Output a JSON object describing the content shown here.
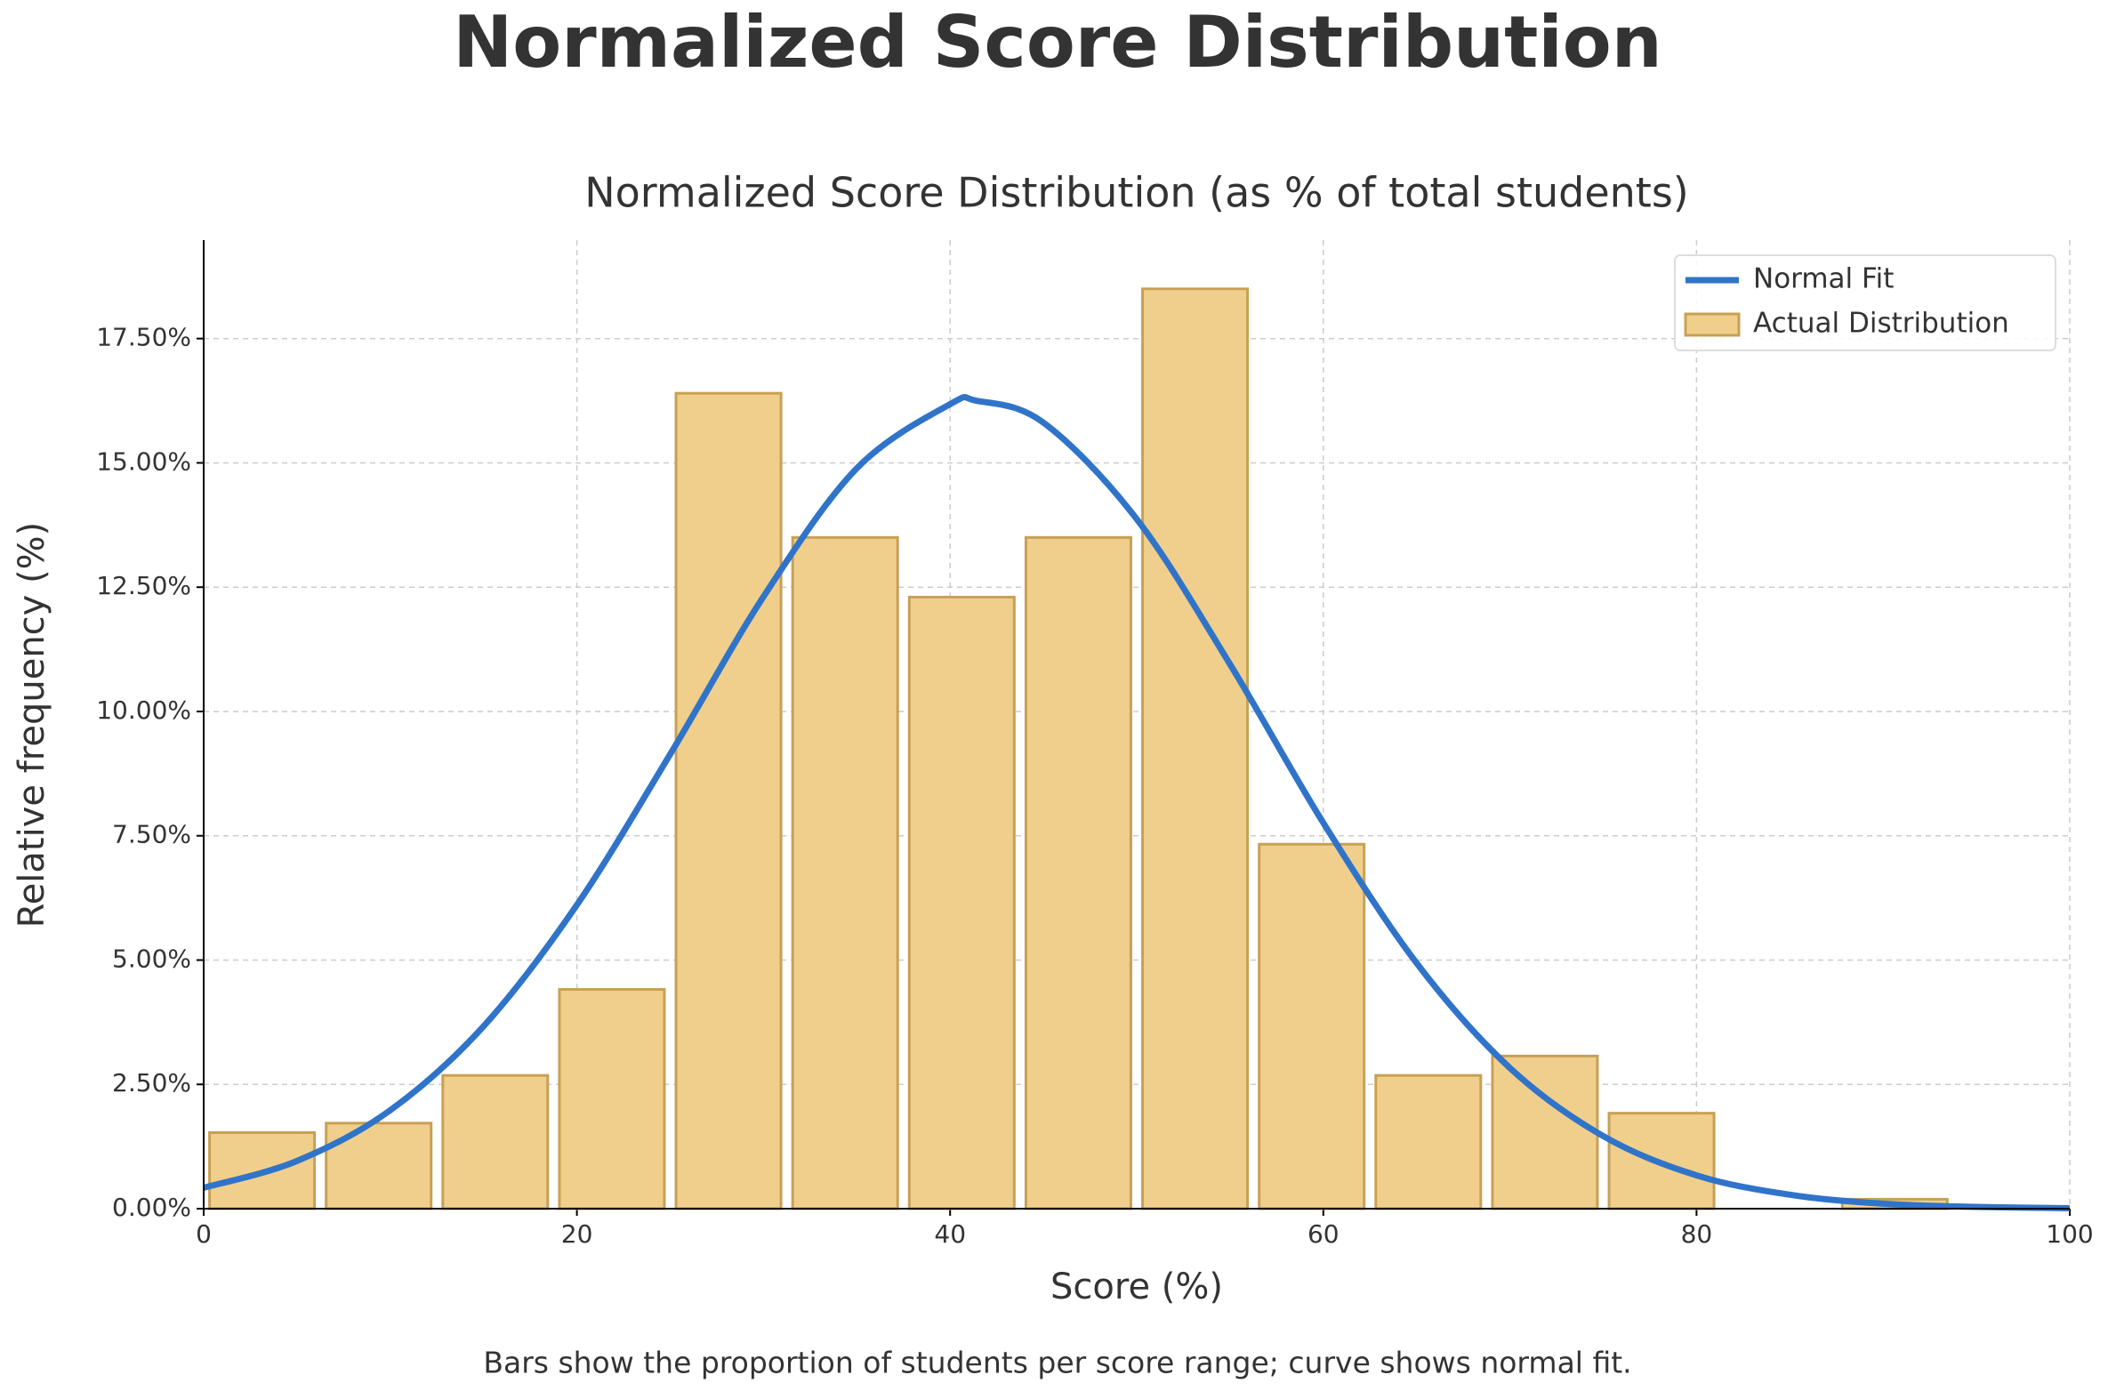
{
  "chart_data": {
    "type": "histogram",
    "title": "Normalized Score Distribution",
    "subtitle": "Normalized Score Distribution (as % of total students)",
    "xlabel": "Score (%)",
    "ylabel": "Relative frequency (%)",
    "caption": "Bars show the proportion of students per score range; curve shows normal fit.",
    "bins": [
      0,
      6.25,
      12.5,
      18.75,
      25,
      31.25,
      37.5,
      43.75,
      50,
      56.25,
      62.5,
      68.75,
      75,
      81.25,
      87.5,
      93.75,
      100
    ],
    "series": [
      {
        "name": "Normal Fit",
        "type": "line",
        "color": "#3074c9",
        "x": [
          0,
          5,
          10,
          15,
          20,
          25,
          30,
          35,
          40,
          41.4,
          45,
          50,
          55,
          60,
          65,
          70,
          75,
          80,
          85,
          90,
          95,
          100
        ],
        "values": [
          0.42,
          0.96,
          1.98,
          3.67,
          6.11,
          9.14,
          12.31,
          14.89,
          16.18,
          16.25,
          15.81,
          13.87,
          10.95,
          7.76,
          4.94,
          2.83,
          1.46,
          0.67,
          0.28,
          0.1,
          0.035,
          0.01
        ]
      },
      {
        "name": "Actual Distribution",
        "type": "histogram",
        "color": "#f0cf8c",
        "edgecolor": "#c8a055",
        "values": [
          1.53,
          1.72,
          2.68,
          4.41,
          16.4,
          13.5,
          12.3,
          13.5,
          18.5,
          7.33,
          2.68,
          3.07,
          1.92,
          0,
          0.19,
          0
        ]
      }
    ],
    "xlim": [
      0,
      100
    ],
    "xticks": [
      0,
      20,
      40,
      60,
      80,
      100
    ],
    "ylim": [
      0,
      19.48
    ],
    "yticks": [
      {
        "value": 0,
        "label": "0.00%"
      },
      {
        "value": 2.5,
        "label": "2.50%"
      },
      {
        "value": 5,
        "label": "5.00%"
      },
      {
        "value": 7.5,
        "label": "7.50%"
      },
      {
        "value": 10,
        "label": "10.00%"
      },
      {
        "value": 12.5,
        "label": "12.50%"
      },
      {
        "value": 15,
        "label": "15.00%"
      },
      {
        "value": 17.5,
        "label": "17.50%"
      }
    ],
    "grid": true,
    "legend": "upper right"
  }
}
